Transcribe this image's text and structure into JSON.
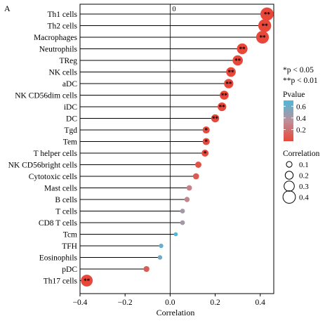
{
  "panel_label": "A",
  "chart_data": {
    "type": "lollipop",
    "title": "",
    "xlabel": "Correlation",
    "ylabel": "",
    "xlim": [
      -0.4,
      0.46
    ],
    "xticks": [
      -0.4,
      -0.2,
      0.0,
      0.2,
      0.4
    ],
    "xtick_labels": [
      "−0.4",
      "−0.2",
      "0.0",
      "0.2",
      "0.4"
    ],
    "zero_label": "0",
    "categories": [
      "Th1 cells",
      "Th2 cells",
      "Macrophages",
      "Neutrophils",
      "TReg",
      "NK cells",
      "aDC",
      "NK CD56dim cells",
      "iDC",
      "DC",
      "Tgd",
      "Tem",
      "T helper cells",
      "NK CD56bright cells",
      "Cytotoxic cells",
      "Mast cells",
      "B cells",
      "T cells",
      "CD8 T cells",
      "Tcm",
      "TFH",
      "Eosinophils",
      "pDC",
      "Th17 cells"
    ],
    "values": [
      0.43,
      0.42,
      0.41,
      0.32,
      0.3,
      0.27,
      0.26,
      0.24,
      0.23,
      0.2,
      0.16,
      0.16,
      0.155,
      0.125,
      0.115,
      0.085,
      0.075,
      0.055,
      0.055,
      0.025,
      -0.04,
      -0.045,
      -0.105,
      -0.37
    ],
    "pvalues": [
      0.001,
      0.001,
      0.001,
      0.001,
      0.001,
      0.001,
      0.001,
      0.001,
      0.001,
      0.002,
      0.01,
      0.012,
      0.015,
      0.06,
      0.09,
      0.28,
      0.3,
      0.42,
      0.43,
      0.7,
      0.62,
      0.58,
      0.1,
      0.001
    ],
    "significance": [
      "**",
      "**",
      "**",
      "**",
      "**",
      "**",
      "**",
      "**",
      "**",
      "**",
      "*",
      "*",
      "*",
      "",
      "",
      "",
      "",
      "",
      "",
      "",
      "",
      "",
      "",
      "**"
    ],
    "grid": false,
    "legend_placement": "right",
    "colors": {
      "low_p": "#e8473a",
      "mid_p": "#bd8f9a",
      "high_p": "#4db8d8",
      "stem": "#000000"
    }
  },
  "legend": {
    "sig_lines": [
      "*p < 0.05",
      "**p < 0.01"
    ],
    "pvalue_title": "Pvalue",
    "pvalue_ticks": [
      0.6,
      0.4,
      0.2
    ],
    "pvalue_tick_labels": [
      "0.6",
      "0.4",
      "0.2"
    ],
    "pvalue_range": [
      0.001,
      0.7
    ],
    "correlation_title": "Correlation",
    "size_values": [
      0.1,
      0.2,
      0.3,
      0.4
    ],
    "size_labels": [
      "0.1",
      "0.2",
      "0.3",
      "0.4"
    ]
  }
}
